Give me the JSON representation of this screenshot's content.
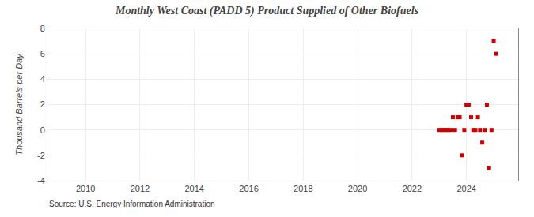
{
  "chart_data": {
    "type": "scatter",
    "title": "Monthly West Coast (PADD 5) Product Supplied of Other Biofuels",
    "ylabel": "Thousand Barrels per Day",
    "annotations": [
      "Source: U.S. Energy Information Administration"
    ],
    "color": "#cc0000",
    "marker": "square",
    "grid": true,
    "xlim": [
      2008.6,
      2025.9
    ],
    "ylim": [
      -4,
      8
    ],
    "xticks": [
      2010,
      2012,
      2014,
      2016,
      2018,
      2020,
      2022,
      2024
    ],
    "yticks": [
      -4,
      -2,
      0,
      2,
      4,
      6,
      8
    ],
    "x": [
      2023.0,
      2023.08,
      2023.17,
      2023.25,
      2023.33,
      2023.42,
      2023.5,
      2023.58,
      2023.67,
      2023.75,
      2023.83,
      2023.92,
      2024.0,
      2024.08,
      2024.17,
      2024.25,
      2024.33,
      2024.42,
      2024.5,
      2024.58,
      2024.67,
      2024.75,
      2024.83,
      2024.92,
      2025.0,
      2025.08
    ],
    "values": [
      0,
      0,
      0,
      0,
      0,
      0,
      1,
      0,
      1,
      1,
      -2,
      0,
      2,
      2,
      1,
      0,
      0,
      1,
      0,
      -1,
      0,
      2,
      -3,
      0,
      7,
      6
    ]
  }
}
